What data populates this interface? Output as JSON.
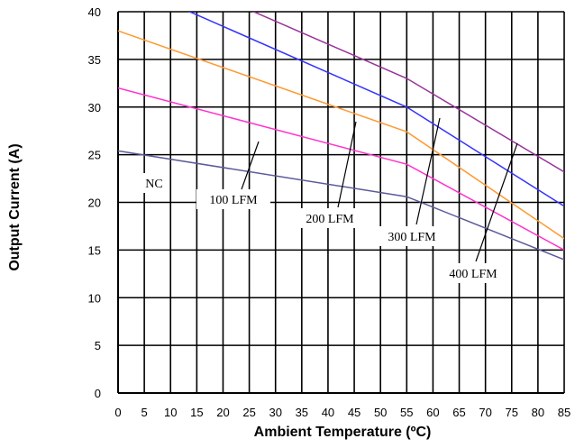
{
  "chart_data": {
    "type": "line",
    "title": "",
    "xlabel": "Ambient Temperature (ºC)",
    "ylabel": "Output Current (A)",
    "xlim": [
      0,
      85
    ],
    "ylim": [
      0,
      40
    ],
    "grid": true,
    "legend": "none",
    "x_ticks": [
      "0",
      "5",
      "10",
      "15",
      "20",
      "25",
      "30",
      "35",
      "40",
      "45",
      "50",
      "55",
      "60",
      "65",
      "70",
      "75",
      "80",
      "85"
    ],
    "y_ticks": [
      "0",
      "5",
      "10",
      "15",
      "20",
      "25",
      "30",
      "35",
      "40"
    ],
    "series": [
      {
        "name": "NC",
        "color": "#5a5a9a",
        "points": [
          [
            0,
            25.4
          ],
          [
            55,
            20.6
          ],
          [
            85,
            14.0
          ]
        ]
      },
      {
        "name": "100 LFM",
        "color": "#ff33cc",
        "points": [
          [
            0,
            32.0
          ],
          [
            55,
            24.0
          ],
          [
            85,
            15.0
          ]
        ]
      },
      {
        "name": "200 LFM",
        "color": "#ff9933",
        "points": [
          [
            0,
            38.0
          ],
          [
            55,
            27.4
          ],
          [
            85,
            16.2
          ]
        ]
      },
      {
        "name": "300 LFM",
        "color": "#3333ff",
        "points": [
          [
            0,
            43.3
          ],
          [
            55,
            30.0
          ],
          [
            85,
            19.6
          ]
        ]
      },
      {
        "name": "400 LFM",
        "color": "#993399",
        "points": [
          [
            20,
            41.4
          ],
          [
            55,
            33.0
          ],
          [
            85,
            23.2
          ]
        ]
      }
    ],
    "annotations": [
      {
        "text": "NC",
        "series": 0
      },
      {
        "text": "100 LFM",
        "series": 1
      },
      {
        "text": "200 LFM",
        "series": 2
      },
      {
        "text": "300 LFM",
        "series": 3
      },
      {
        "text": "400 LFM",
        "series": 4
      }
    ]
  }
}
